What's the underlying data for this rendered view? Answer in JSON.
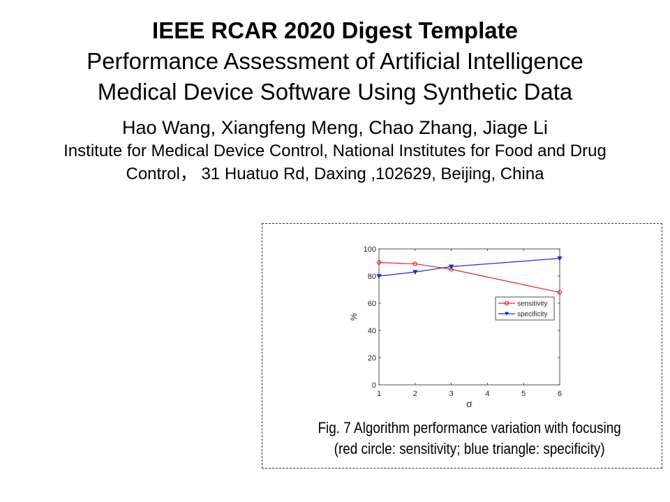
{
  "header": {
    "title": "IEEE RCAR 2020 Digest Template",
    "subtitle_line1": "Performance Assessment of Artificial Intelligence",
    "subtitle_line2": "Medical Device Software Using Synthetic Data",
    "authors": "Hao Wang, Xiangfeng Meng, Chao Zhang, Jiage Li",
    "affiliation_line1": "Institute for Medical Device Control, National Institutes for Food and Drug",
    "affiliation_line2": "Control， 31 Huatuo Rd, Daxing ,102629,  Beijing, China"
  },
  "figure": {
    "caption_line1": "Fig. 7 Algorithm performance variation with focusing",
    "caption_line2": "(red circle: sensitivity; blue triangle: specificity)"
  },
  "chart_data": {
    "type": "line",
    "title": "",
    "xlabel": "σ",
    "ylabel": "%",
    "xlim": [
      1,
      6
    ],
    "ylim": [
      0,
      100
    ],
    "xticks": [
      1,
      2,
      3,
      4,
      5,
      6
    ],
    "yticks": [
      0,
      20,
      40,
      60,
      80,
      100
    ],
    "grid": false,
    "legend_position": "right",
    "series": [
      {
        "name": "sensitivity",
        "color": "#e8202a",
        "marker": "circle",
        "x": [
          1,
          2,
          3,
          6
        ],
        "y": [
          90,
          89,
          85,
          68
        ]
      },
      {
        "name": "specificity",
        "color": "#1f2ad6",
        "marker": "triangle-down",
        "x": [
          1,
          2,
          3,
          6
        ],
        "y": [
          80,
          83,
          87,
          93
        ]
      }
    ]
  }
}
